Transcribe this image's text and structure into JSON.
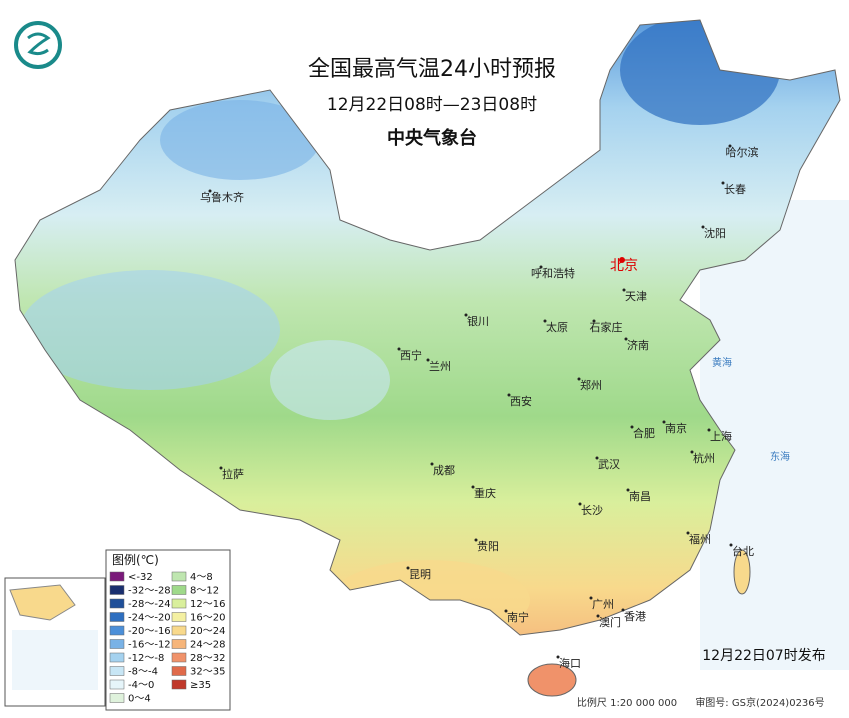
{
  "header": {
    "title": "全国最高气温24小时预报",
    "subtitle": "12月22日08时—23日08时",
    "agency": "中央气象台"
  },
  "legend": {
    "title": "图例(℃)",
    "items": [
      {
        "label": "<-32",
        "color": "#7a1a7a"
      },
      {
        "label": "-32～-28",
        "color": "#1a2f6e"
      },
      {
        "label": "-28～-24",
        "color": "#1f4f99"
      },
      {
        "label": "-24～-20",
        "color": "#2e6fc0"
      },
      {
        "label": "-20～-16",
        "color": "#4c8fd8"
      },
      {
        "label": "-16～-12",
        "color": "#79b2e6"
      },
      {
        "label": "-12～-8",
        "color": "#a5d2ef"
      },
      {
        "label": "-8～-4",
        "color": "#c8e6f5"
      },
      {
        "label": "-4～0",
        "color": "#e6f5fa"
      },
      {
        "label": "0～4",
        "color": "#dff2dc"
      },
      {
        "label": "4～8",
        "color": "#bfe6b0"
      },
      {
        "label": "8～12",
        "color": "#9fd98a"
      },
      {
        "label": "12～16",
        "color": "#d9ef9c"
      },
      {
        "label": "16～20",
        "color": "#f4f0a2"
      },
      {
        "label": "20～24",
        "color": "#f8d98c"
      },
      {
        "label": "24～28",
        "color": "#f6b57a"
      },
      {
        "label": "28～32",
        "color": "#f0926a"
      },
      {
        "label": "32～35",
        "color": "#e06a4a"
      },
      {
        "label": "≥35",
        "color": "#c0392b"
      }
    ]
  },
  "cities": [
    "乌鲁木齐",
    "呼和浩特",
    "北京",
    "天津",
    "哈尔滨",
    "长春",
    "沈阳",
    "银川",
    "太原",
    "石家庄",
    "济南",
    "西宁",
    "兰州",
    "郑州",
    "西安",
    "合肥",
    "南京",
    "上海",
    "杭州",
    "拉萨",
    "成都",
    "武汉",
    "重庆",
    "南昌",
    "长沙",
    "贵阳",
    "福州",
    "台北",
    "昆明",
    "南宁",
    "广州",
    "香港",
    "澳门",
    "海口"
  ],
  "seas": [
    "黄海",
    "东海"
  ],
  "footer": {
    "issued": "12月22日07时发布",
    "scale": "比例尺 1:20 000 000",
    "review": "审图号: GS京(2024)0236号"
  }
}
